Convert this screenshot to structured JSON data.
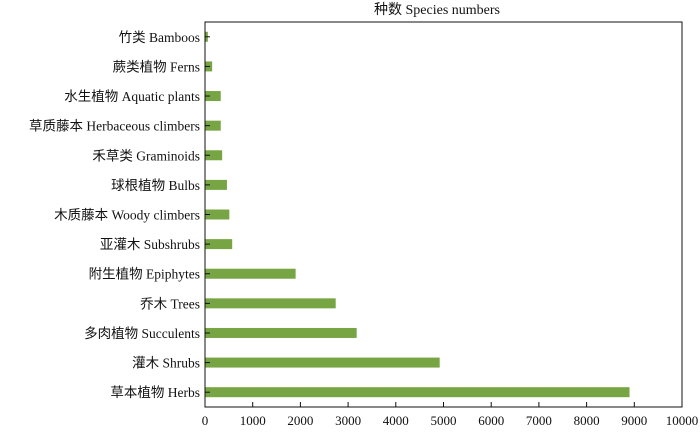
{
  "chart_data": {
    "type": "bar",
    "orientation": "horizontal",
    "title": "种数 Species numbers",
    "xlabel": "",
    "ylabel": "",
    "xlim": [
      0,
      10000
    ],
    "x_ticks": [
      0,
      1000,
      2000,
      3000,
      4000,
      5000,
      6000,
      7000,
      8000,
      9000,
      10000
    ],
    "grid": false,
    "legend": "none",
    "bar_color": "#78a543",
    "categories": [
      "竹类 Bamboos",
      "蕨类植物 Ferns",
      "水生植物 Aquatic plants",
      "草质藤本 Herbaceous climbers",
      "禾草类 Graminoids",
      "球根植物 Bulbs",
      "木质藤本 Woody climbers",
      "亚灌木 Subshrubs",
      "附生植物 Epiphytes",
      "乔木 Trees",
      "多肉植物 Succulents",
      "灌木 Shrubs",
      "草本植物 Herbs"
    ],
    "values": [
      60,
      150,
      330,
      330,
      360,
      460,
      510,
      570,
      1900,
      2740,
      3180,
      4920,
      8900
    ]
  }
}
